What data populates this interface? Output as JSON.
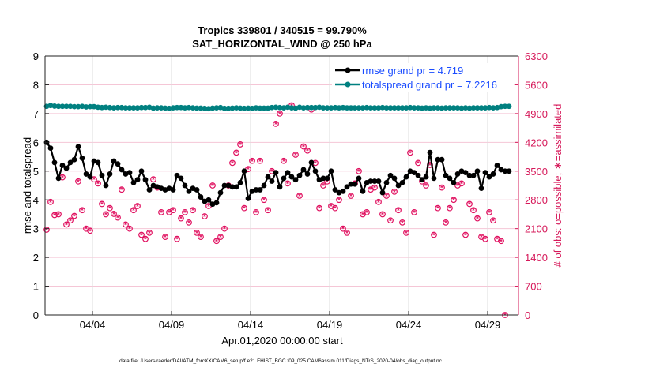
{
  "chart_data": {
    "type": "line",
    "title": "Tropics 339801 / 340515 = 99.790%",
    "subtitle": "SAT_HORIZONTAL_WIND @ 250 hPa",
    "xlabel": "Apr.01,2020 00:00:00 start",
    "ylabel": "rmse and totalspread",
    "ylabel_right": "# of obs: o=possible; ∗=assimilated",
    "footer": "data file: /Users/raeder/DAI/ATM_forcXX/CAM6_setup/f.e21.FHIST_BGC.f09_025.CAM6assim.011/Diags_NTrS_2020-04/obs_diag_output.nc",
    "x_units": "days since Apr.01,2020 00:00",
    "x_step": 0.25,
    "xlim": [
      0,
      29.95
    ],
    "ylim": [
      0,
      9
    ],
    "ylim_right": [
      0,
      6300
    ],
    "xticks": [
      {
        "value": 3,
        "label": "04/04"
      },
      {
        "value": 8,
        "label": "04/09"
      },
      {
        "value": 13,
        "label": "04/14"
      },
      {
        "value": 18,
        "label": "04/19"
      },
      {
        "value": 23,
        "label": "04/24"
      },
      {
        "value": 28,
        "label": "04/29"
      }
    ],
    "yticks": [
      "0",
      "1",
      "2",
      "3",
      "4",
      "5",
      "6",
      "7",
      "8",
      "9"
    ],
    "yticks_right": [
      "0",
      "700",
      "1400",
      "2100",
      "2800",
      "3500",
      "4200",
      "4900",
      "5600",
      "6300"
    ],
    "grid": true,
    "legend_position": "top-right",
    "colors": {
      "rmse": "#000000",
      "totalspread": "#008080",
      "obs": "#e0105f",
      "right_axis": "#d6195a",
      "legend_text": "#1a4cff"
    },
    "series": [
      {
        "name": "rmse grand pr = 4.719",
        "axis": "left",
        "values": [
          6.0,
          5.8,
          5.3,
          4.75,
          5.2,
          5.1,
          5.3,
          5.4,
          5.85,
          5.45,
          4.9,
          4.8,
          5.35,
          5.3,
          4.85,
          4.5,
          4.9,
          5.35,
          5.25,
          5.05,
          4.9,
          4.95,
          4.6,
          4.7,
          5.0,
          4.7,
          4.35,
          4.5,
          4.45,
          4.4,
          4.35,
          4.4,
          4.35,
          4.85,
          4.75,
          4.5,
          4.3,
          4.4,
          4.35,
          4.1,
          3.95,
          4.0,
          3.85,
          3.9,
          4.25,
          4.5,
          4.5,
          4.45,
          4.45,
          4.6,
          5.0,
          4.05,
          4.3,
          4.35,
          4.35,
          4.5,
          4.8,
          4.65,
          4.95,
          4.45,
          4.75,
          4.95,
          4.8,
          4.7,
          4.85,
          5.05,
          4.9,
          5.3,
          5.0,
          4.7,
          4.75,
          4.75,
          5.0,
          4.35,
          4.25,
          4.3,
          4.45,
          4.55,
          4.55,
          4.75,
          4.3,
          4.6,
          4.65,
          4.65,
          4.65,
          4.25,
          4.6,
          4.85,
          4.75,
          4.5,
          4.6,
          4.8,
          5.0,
          4.95,
          4.85,
          4.7,
          4.8,
          5.65,
          4.75,
          5.4,
          5.4,
          4.85,
          4.75,
          4.6,
          4.9,
          5.0,
          4.95,
          4.85,
          4.85,
          5.0,
          4.4,
          4.95,
          4.8,
          4.9,
          5.2,
          5.05,
          5.0,
          5.0
        ]
      },
      {
        "name": "totalspread grand pr = 7.2216",
        "axis": "left",
        "values": [
          7.25,
          7.28,
          7.26,
          7.25,
          7.25,
          7.25,
          7.25,
          7.24,
          7.24,
          7.25,
          7.23,
          7.24,
          7.24,
          7.22,
          7.21,
          7.22,
          7.21,
          7.2,
          7.21,
          7.21,
          7.2,
          7.2,
          7.2,
          7.2,
          7.21,
          7.21,
          7.22,
          7.19,
          7.2,
          7.2,
          7.19,
          7.18,
          7.2,
          7.21,
          7.21,
          7.2,
          7.21,
          7.2,
          7.19,
          7.19,
          7.18,
          7.17,
          7.19,
          7.2,
          7.21,
          7.18,
          7.18,
          7.19,
          7.2,
          7.19,
          7.18,
          7.19,
          7.18,
          7.2,
          7.19,
          7.19,
          7.19,
          7.21,
          7.22,
          7.21,
          7.2,
          7.22,
          7.2,
          7.19,
          7.22,
          7.2,
          7.21,
          7.21,
          7.21,
          7.22,
          7.2,
          7.2,
          7.2,
          7.21,
          7.2,
          7.21,
          7.2,
          7.2,
          7.2,
          7.2,
          7.2,
          7.21,
          7.2,
          7.2,
          7.2,
          7.21,
          7.2,
          7.2,
          7.2,
          7.2,
          7.2,
          7.2,
          7.21,
          7.2,
          7.2,
          7.19,
          7.2,
          7.19,
          7.2,
          7.2,
          7.19,
          7.2,
          7.2,
          7.2,
          7.2,
          7.19,
          7.2,
          7.19,
          7.2,
          7.2,
          7.2,
          7.2,
          7.21,
          7.2,
          7.21,
          7.24,
          7.25,
          7.25
        ]
      },
      {
        "name": "obs possible/assimilated",
        "axis": "right",
        "values": [
          2075,
          2750,
          2430,
          2450,
          3350,
          2200,
          2300,
          2410,
          3250,
          2550,
          2100,
          2050,
          3300,
          3200,
          2700,
          2450,
          2600,
          2460,
          2370,
          3050,
          2200,
          2100,
          2550,
          2650,
          1950,
          1850,
          2000,
          3300,
          3100,
          2500,
          1900,
          2500,
          2550,
          1850,
          2350,
          2500,
          2250,
          2550,
          2000,
          1900,
          2400,
          2650,
          3150,
          1800,
          1900,
          2100,
          3150,
          3700,
          3950,
          4150,
          2600,
          3550,
          3750,
          2500,
          3750,
          2800,
          2550,
          3500,
          4650,
          4900,
          3750,
          3200,
          5100,
          3900,
          2900,
          4100,
          4000,
          5000,
          3700,
          2600,
          3150,
          3250,
          2650,
          2600,
          2800,
          2100,
          2000,
          2900,
          3200,
          3500,
          2450,
          2500,
          3050,
          3100,
          2750,
          2450,
          2900,
          2300,
          3000,
          2550,
          2250,
          2000,
          3950,
          2500,
          3700,
          3250,
          3150,
          3650,
          1950,
          2600,
          3100,
          2250,
          2600,
          2800,
          3150,
          3200,
          1950,
          2700,
          2550,
          2350,
          1900,
          1850,
          2500,
          2300,
          1850,
          1800,
          0
        ]
      }
    ]
  }
}
